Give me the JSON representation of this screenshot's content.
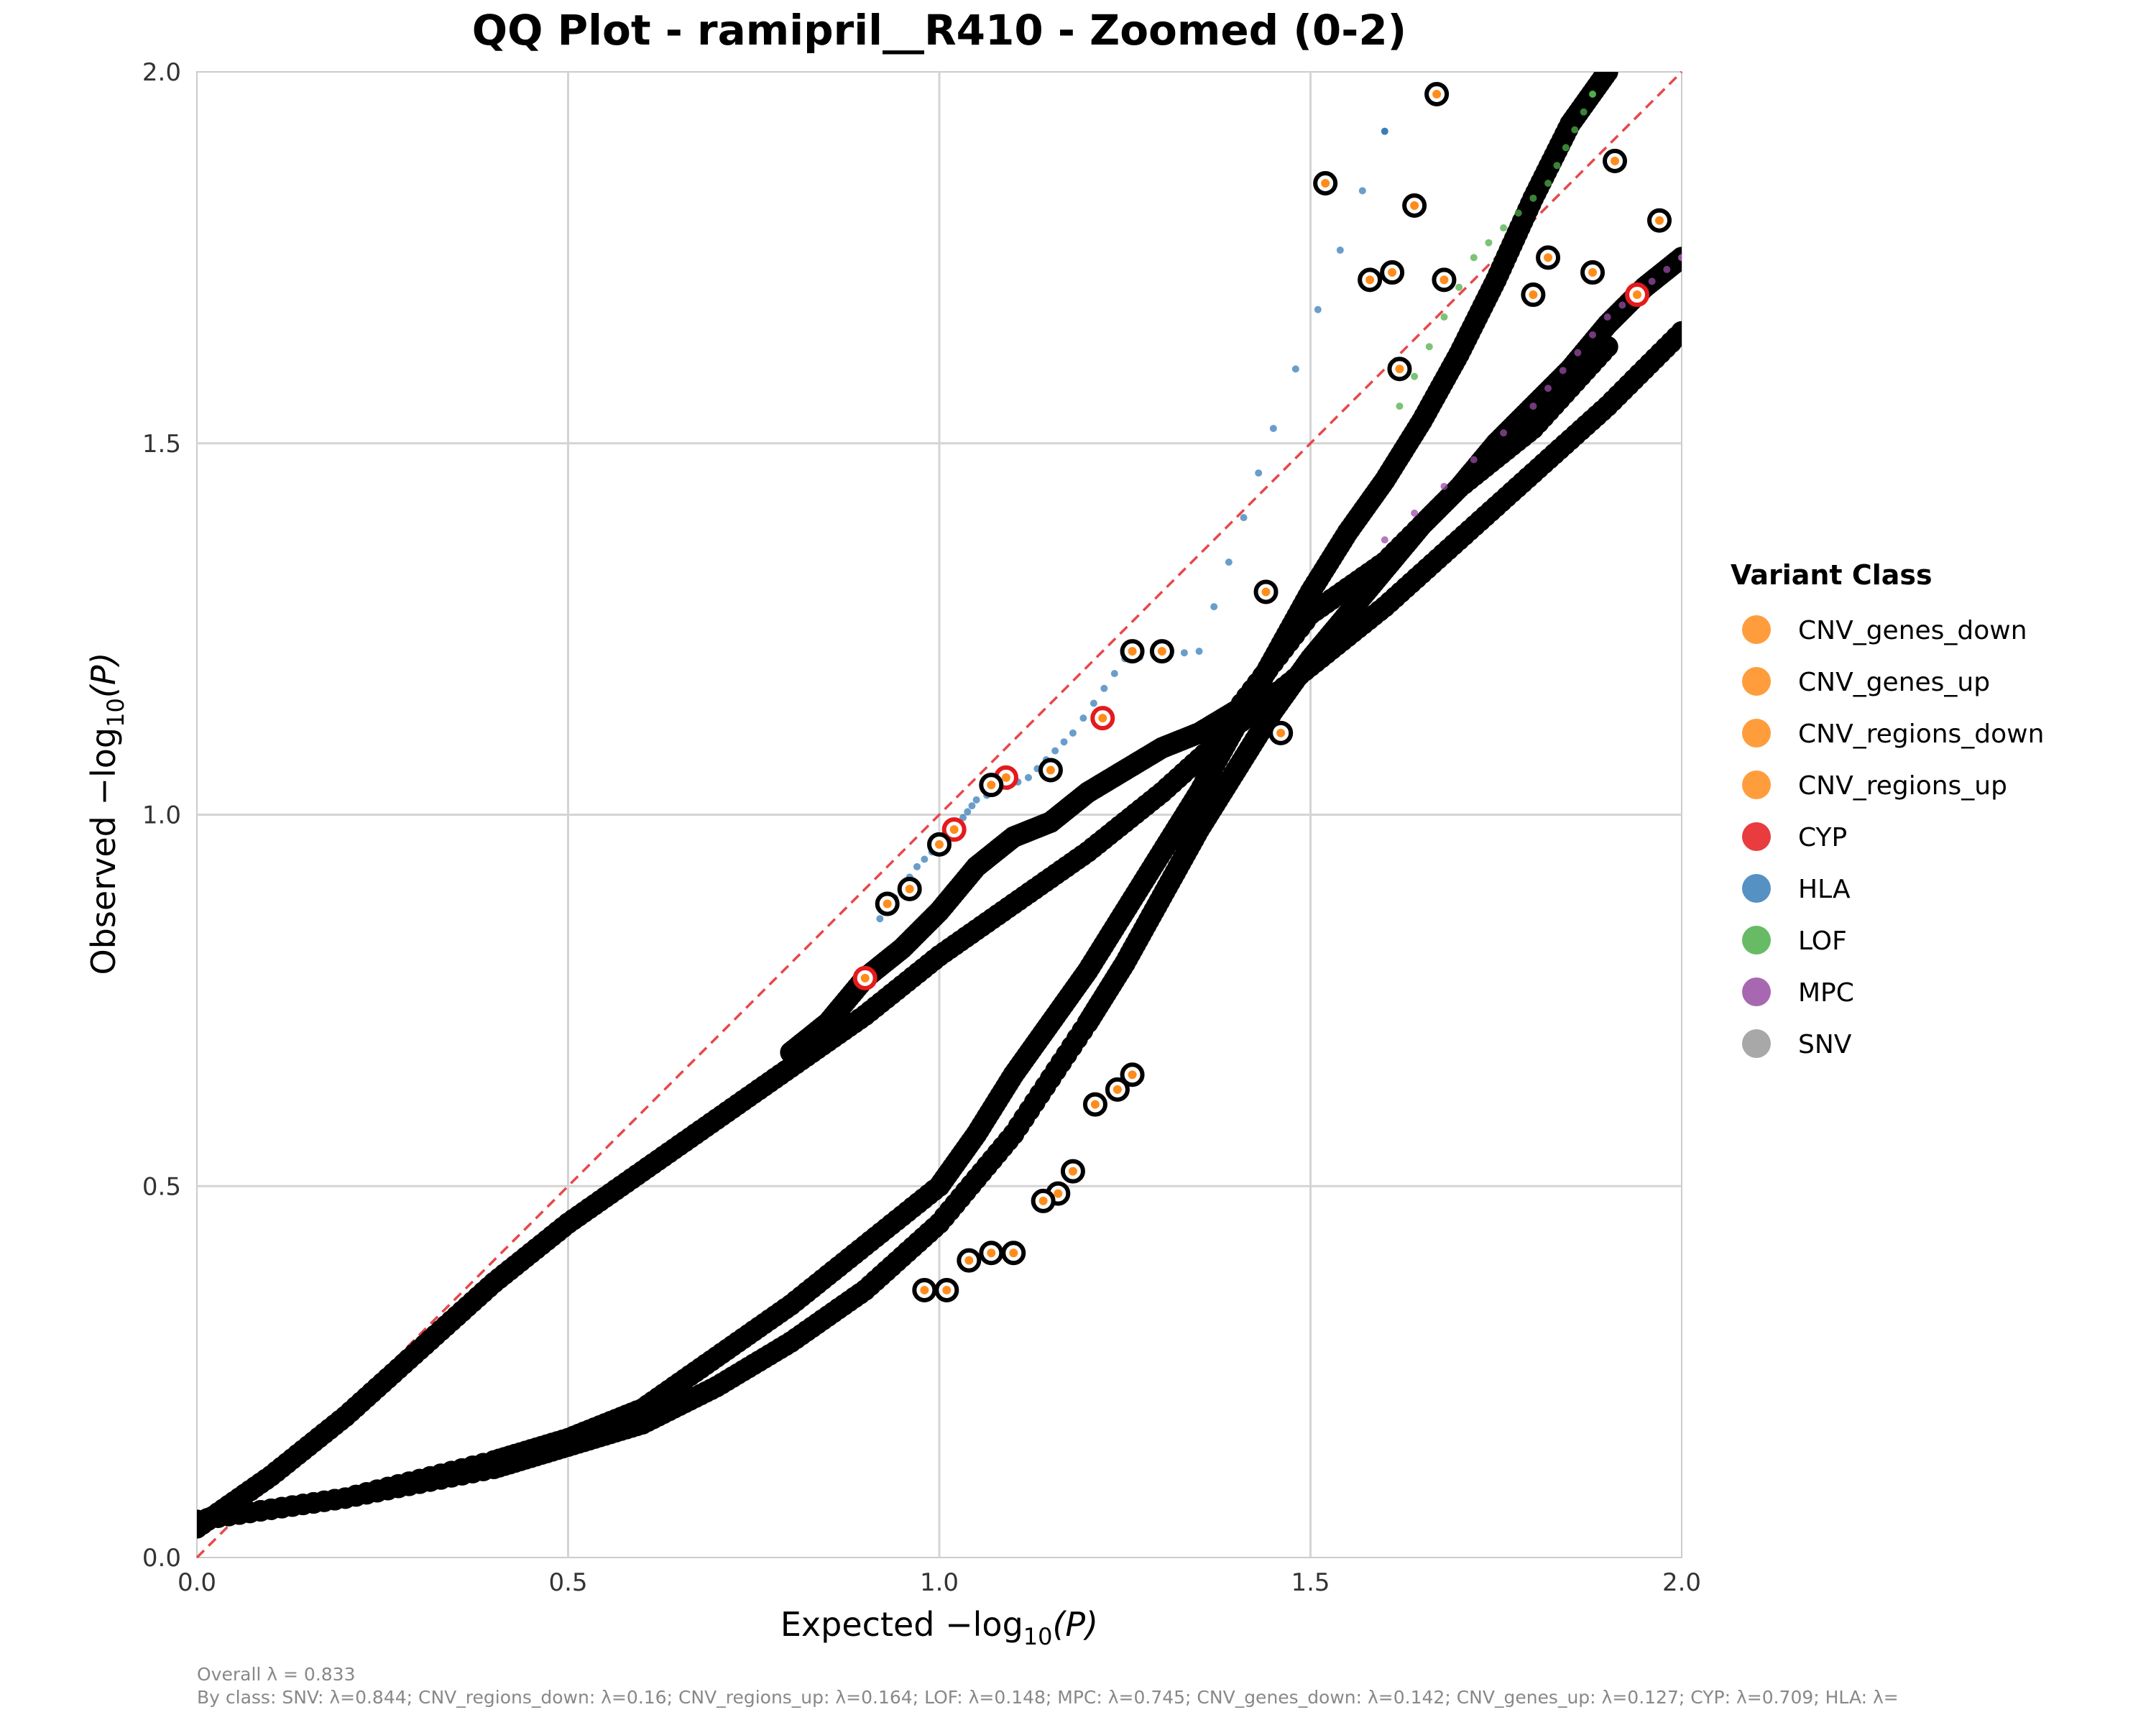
{
  "chart_data": {
    "type": "scatter",
    "title": "QQ Plot - ramipril__R410 - Zoomed (0-2)",
    "xlabel_main": "Expected −log",
    "ylabel_main": "Observed −log",
    "label_subscript": "10",
    "label_variable": "(P)",
    "xlim": [
      0,
      2
    ],
    "ylim": [
      0,
      2
    ],
    "x_ticks": [
      "0.0",
      "0.5",
      "1.0",
      "1.5",
      "2.0"
    ],
    "y_ticks": [
      "0.0",
      "0.5",
      "1.0",
      "1.5",
      "2.0"
    ],
    "grid": true,
    "reference_line": {
      "style": "dashed",
      "color": "#e8474a",
      "from": [
        0,
        0
      ],
      "to": [
        2,
        2
      ]
    },
    "legend": {
      "title": "Variant Class",
      "placement": "right",
      "entries": [
        {
          "label": "CNV_genes_down",
          "color": "#ff8c1a"
        },
        {
          "label": "CNV_genes_up",
          "color": "#ff8c1a"
        },
        {
          "label": "CNV_regions_down",
          "color": "#ff8c1a"
        },
        {
          "label": "CNV_regions_up",
          "color": "#ff8c1a"
        },
        {
          "label": "CYP",
          "color": "#e41a1c"
        },
        {
          "label": "HLA",
          "color": "#377eb8"
        },
        {
          "label": "LOF",
          "color": "#4daf4a"
        },
        {
          "label": "MPC",
          "color": "#984ea3"
        },
        {
          "label": "SNV",
          "color": "#999999"
        }
      ]
    },
    "series": [
      {
        "class": "SNV",
        "color": "#000000",
        "points": [
          [
            0.0,
            0.04
          ],
          [
            0.1,
            0.11
          ],
          [
            0.2,
            0.19
          ],
          [
            0.3,
            0.28
          ],
          [
            0.4,
            0.37
          ],
          [
            0.5,
            0.45
          ],
          [
            0.6,
            0.52
          ],
          [
            0.7,
            0.59
          ],
          [
            0.8,
            0.66
          ],
          [
            0.9,
            0.73
          ],
          [
            1.0,
            0.81
          ],
          [
            1.1,
            0.88
          ],
          [
            1.2,
            0.95
          ],
          [
            1.3,
            1.03
          ],
          [
            1.4,
            1.12
          ],
          [
            1.5,
            1.2
          ],
          [
            1.6,
            1.28
          ],
          [
            1.7,
            1.37
          ],
          [
            1.8,
            1.46
          ],
          [
            1.9,
            1.55
          ],
          [
            2.0,
            1.65
          ]
        ]
      },
      {
        "class": "CNV_regions_down",
        "color": "#ff8c1a",
        "points": [
          [
            0.0,
            0.05
          ],
          [
            0.2,
            0.08
          ],
          [
            0.4,
            0.13
          ],
          [
            0.5,
            0.16
          ],
          [
            0.6,
            0.2
          ],
          [
            0.7,
            0.27
          ],
          [
            0.8,
            0.34
          ],
          [
            0.9,
            0.42
          ],
          [
            1.0,
            0.5
          ],
          [
            1.05,
            0.57
          ],
          [
            1.1,
            0.65
          ],
          [
            1.15,
            0.72
          ],
          [
            1.2,
            0.79
          ],
          [
            1.25,
            0.87
          ],
          [
            1.3,
            0.95
          ],
          [
            1.35,
            1.03
          ],
          [
            1.4,
            1.12
          ],
          [
            1.45,
            1.21
          ],
          [
            1.5,
            1.3
          ],
          [
            1.55,
            1.38
          ],
          [
            1.6,
            1.45
          ],
          [
            1.65,
            1.53
          ],
          [
            1.7,
            1.62
          ],
          [
            1.75,
            1.72
          ],
          [
            1.8,
            1.83
          ],
          [
            1.85,
            1.93
          ],
          [
            1.9,
            2.0
          ]
        ]
      },
      {
        "class": "CNV_regions_up",
        "color": "#ff8c1a",
        "points": [
          [
            0.0,
            0.05
          ],
          [
            0.2,
            0.08
          ],
          [
            0.4,
            0.12
          ],
          [
            0.5,
            0.15
          ],
          [
            0.6,
            0.18
          ],
          [
            0.7,
            0.23
          ],
          [
            0.8,
            0.29
          ],
          [
            0.9,
            0.36
          ],
          [
            1.0,
            0.45
          ],
          [
            1.1,
            0.57
          ],
          [
            1.2,
            0.72
          ],
          [
            1.25,
            0.8
          ],
          [
            1.3,
            0.89
          ],
          [
            1.35,
            0.98
          ],
          [
            1.4,
            1.06
          ],
          [
            1.45,
            1.14
          ],
          [
            1.5,
            1.21
          ],
          [
            1.55,
            1.27
          ],
          [
            1.6,
            1.33
          ],
          [
            1.65,
            1.39
          ],
          [
            1.7,
            1.44
          ],
          [
            1.75,
            1.5
          ],
          [
            1.8,
            1.55
          ],
          [
            1.85,
            1.6
          ],
          [
            1.9,
            1.66
          ],
          [
            1.95,
            1.71
          ],
          [
            2.0,
            1.75
          ]
        ]
      },
      {
        "class": "CYP",
        "color": "#e41a1c",
        "points": [
          [
            0.8,
            0.68
          ],
          [
            0.85,
            0.72
          ],
          [
            0.9,
            0.78
          ],
          [
            0.95,
            0.82
          ],
          [
            1.0,
            0.87
          ],
          [
            1.05,
            0.93
          ],
          [
            1.1,
            0.97
          ],
          [
            1.15,
            0.99
          ],
          [
            1.2,
            1.03
          ],
          [
            1.25,
            1.06
          ],
          [
            1.3,
            1.09
          ],
          [
            1.35,
            1.11
          ],
          [
            1.4,
            1.14
          ],
          [
            1.5,
            1.27
          ],
          [
            1.6,
            1.34
          ],
          [
            1.7,
            1.44
          ],
          [
            1.8,
            1.52
          ],
          [
            1.9,
            1.63
          ]
        ]
      },
      {
        "class": "HLA",
        "color": "#377eb8",
        "points": [
          [
            0.92,
            0.86
          ],
          [
            0.97,
            0.93
          ],
          [
            1.02,
            0.98
          ],
          [
            1.05,
            1.02
          ],
          [
            1.12,
            1.05
          ],
          [
            1.18,
            1.11
          ],
          [
            1.25,
            1.21
          ],
          [
            1.35,
            1.22
          ],
          [
            1.45,
            1.52
          ],
          [
            1.6,
            1.92
          ]
        ]
      },
      {
        "class": "MPC",
        "color": "#984ea3",
        "points": [
          [
            1.6,
            1.37
          ],
          [
            1.8,
            1.55
          ],
          [
            1.9,
            1.67
          ],
          [
            2.0,
            1.75
          ]
        ]
      },
      {
        "class": "LOF",
        "color": "#4daf4a",
        "points": [
          [
            1.62,
            1.55
          ],
          [
            1.72,
            1.75
          ],
          [
            1.82,
            1.85
          ],
          [
            1.88,
            1.97
          ]
        ]
      }
    ],
    "highlighted_points": [
      {
        "x": 0.9,
        "y": 0.78,
        "ring": "#e41a1c"
      },
      {
        "x": 1.02,
        "y": 0.98,
        "ring": "#e41a1c"
      },
      {
        "x": 1.09,
        "y": 1.05,
        "ring": "#e41a1c"
      },
      {
        "x": 1.22,
        "y": 1.13,
        "ring": "#e41a1c"
      },
      {
        "x": 1.94,
        "y": 1.7,
        "ring": "#e41a1c"
      },
      {
        "x": 0.93,
        "y": 0.88,
        "ring": "#000000"
      },
      {
        "x": 0.96,
        "y": 0.9,
        "ring": "#000000"
      },
      {
        "x": 1.0,
        "y": 0.96,
        "ring": "#000000"
      },
      {
        "x": 1.07,
        "y": 1.04,
        "ring": "#000000"
      },
      {
        "x": 1.15,
        "y": 1.06,
        "ring": "#000000"
      },
      {
        "x": 1.26,
        "y": 1.22,
        "ring": "#000000"
      },
      {
        "x": 1.3,
        "y": 1.22,
        "ring": "#000000"
      },
      {
        "x": 1.52,
        "y": 1.85,
        "ring": "#000000"
      },
      {
        "x": 1.67,
        "y": 1.97,
        "ring": "#000000"
      },
      {
        "x": 1.64,
        "y": 1.82,
        "ring": "#000000"
      },
      {
        "x": 1.58,
        "y": 1.72,
        "ring": "#000000"
      },
      {
        "x": 1.61,
        "y": 1.73,
        "ring": "#000000"
      },
      {
        "x": 1.68,
        "y": 1.72,
        "ring": "#000000"
      },
      {
        "x": 1.91,
        "y": 1.88,
        "ring": "#000000"
      },
      {
        "x": 1.97,
        "y": 1.8,
        "ring": "#000000"
      },
      {
        "x": 1.82,
        "y": 1.75,
        "ring": "#000000"
      },
      {
        "x": 1.88,
        "y": 1.73,
        "ring": "#000000"
      },
      {
        "x": 1.8,
        "y": 1.7,
        "ring": "#000000"
      },
      {
        "x": 1.62,
        "y": 1.6,
        "ring": "#000000"
      },
      {
        "x": 1.44,
        "y": 1.3,
        "ring": "#000000"
      },
      {
        "x": 1.46,
        "y": 1.11,
        "ring": "#000000"
      },
      {
        "x": 1.18,
        "y": 0.52,
        "ring": "#000000"
      },
      {
        "x": 1.16,
        "y": 0.49,
        "ring": "#000000"
      },
      {
        "x": 1.14,
        "y": 0.48,
        "ring": "#000000"
      },
      {
        "x": 1.21,
        "y": 0.61,
        "ring": "#000000"
      },
      {
        "x": 1.24,
        "y": 0.63,
        "ring": "#000000"
      },
      {
        "x": 1.26,
        "y": 0.65,
        "ring": "#000000"
      },
      {
        "x": 1.04,
        "y": 0.4,
        "ring": "#000000"
      },
      {
        "x": 1.07,
        "y": 0.41,
        "ring": "#000000"
      },
      {
        "x": 1.1,
        "y": 0.41,
        "ring": "#000000"
      },
      {
        "x": 0.98,
        "y": 0.36,
        "ring": "#000000"
      },
      {
        "x": 1.01,
        "y": 0.36,
        "ring": "#000000"
      }
    ],
    "footnote_overall": "Overall λ = 0.833",
    "footnote_by_class": "By class: SNV: λ=0.844; CNV_regions_down: λ=0.16; CNV_regions_up: λ=0.164; LOF: λ=0.148; MPC: λ=0.745; CNV_genes_down: λ=0.142; CNV_genes_up: λ=0.127; CYP: λ=0.709; HLA: λ="
  }
}
